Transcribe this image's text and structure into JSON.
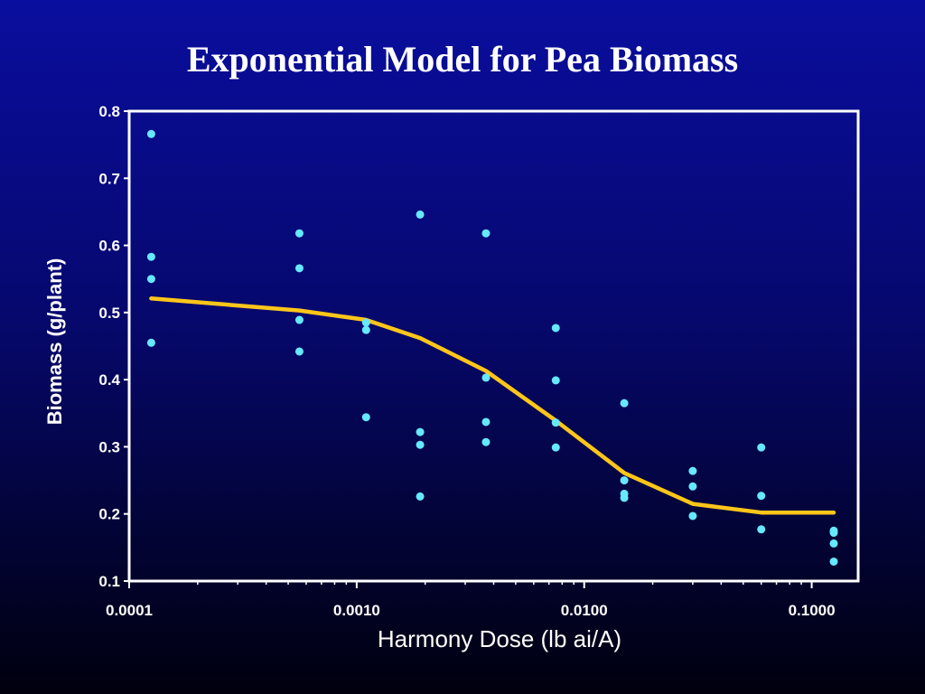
{
  "colors": {
    "background_top": "#0a0e9e",
    "background_bottom": "#00000e",
    "frame": "#ffffff",
    "points": "#66e8ff",
    "fit_line": "#ffc61a",
    "text": "#ffffff"
  },
  "chart_data": {
    "type": "scatter",
    "title": "Exponential Model for Pea Biomass",
    "xlabel": "Harmony Dose (lb ai/A)",
    "ylabel": "Biomass (g/plant)",
    "x_scale": "log",
    "xlim": [
      0.0001,
      0.16
    ],
    "ylim": [
      0.1,
      0.8
    ],
    "x_ticks": [
      {
        "value": 0.0001,
        "label": "0.0001"
      },
      {
        "value": 0.001,
        "label": "0.0010"
      },
      {
        "value": 0.01,
        "label": "0.0100"
      },
      {
        "value": 0.1,
        "label": "0.1000"
      }
    ],
    "y_ticks": [
      {
        "value": 0.1,
        "label": "0.1"
      },
      {
        "value": 0.2,
        "label": "0.2"
      },
      {
        "value": 0.3,
        "label": "0.3"
      },
      {
        "value": 0.4,
        "label": "0.4"
      },
      {
        "value": 0.5,
        "label": "0.5"
      },
      {
        "value": 0.6,
        "label": "0.6"
      },
      {
        "value": 0.7,
        "label": "0.7"
      },
      {
        "value": 0.8,
        "label": "0.8"
      }
    ],
    "grid": false,
    "series": [
      {
        "kind": "points",
        "points": [
          {
            "x": 0.000125,
            "y": 0.766
          },
          {
            "x": 0.000125,
            "y": 0.583
          },
          {
            "x": 0.000125,
            "y": 0.55
          },
          {
            "x": 0.000125,
            "y": 0.455
          },
          {
            "x": 0.00056,
            "y": 0.618
          },
          {
            "x": 0.00056,
            "y": 0.566
          },
          {
            "x": 0.00056,
            "y": 0.489
          },
          {
            "x": 0.00056,
            "y": 0.442
          },
          {
            "x": 0.0011,
            "y": 0.485
          },
          {
            "x": 0.0011,
            "y": 0.474
          },
          {
            "x": 0.0011,
            "y": 0.344
          },
          {
            "x": 0.0019,
            "y": 0.646
          },
          {
            "x": 0.0019,
            "y": 0.322
          },
          {
            "x": 0.0019,
            "y": 0.303
          },
          {
            "x": 0.0019,
            "y": 0.226
          },
          {
            "x": 0.0037,
            "y": 0.618
          },
          {
            "x": 0.0037,
            "y": 0.403
          },
          {
            "x": 0.0037,
            "y": 0.337
          },
          {
            "x": 0.0037,
            "y": 0.307
          },
          {
            "x": 0.0075,
            "y": 0.477
          },
          {
            "x": 0.0075,
            "y": 0.399
          },
          {
            "x": 0.0075,
            "y": 0.336
          },
          {
            "x": 0.0075,
            "y": 0.299
          },
          {
            "x": 0.015,
            "y": 0.365
          },
          {
            "x": 0.015,
            "y": 0.25
          },
          {
            "x": 0.015,
            "y": 0.23
          },
          {
            "x": 0.015,
            "y": 0.224
          },
          {
            "x": 0.03,
            "y": 0.264
          },
          {
            "x": 0.03,
            "y": 0.241
          },
          {
            "x": 0.03,
            "y": 0.197
          },
          {
            "x": 0.06,
            "y": 0.299
          },
          {
            "x": 0.06,
            "y": 0.227
          },
          {
            "x": 0.06,
            "y": 0.177
          },
          {
            "x": 0.125,
            "y": 0.175
          },
          {
            "x": 0.125,
            "y": 0.172
          },
          {
            "x": 0.125,
            "y": 0.156
          },
          {
            "x": 0.125,
            "y": 0.129
          }
        ]
      },
      {
        "kind": "line",
        "points": [
          {
            "x": 0.000125,
            "y": 0.521
          },
          {
            "x": 0.00056,
            "y": 0.503
          },
          {
            "x": 0.0011,
            "y": 0.489
          },
          {
            "x": 0.0019,
            "y": 0.462
          },
          {
            "x": 0.0037,
            "y": 0.413
          },
          {
            "x": 0.0075,
            "y": 0.339
          },
          {
            "x": 0.015,
            "y": 0.261
          },
          {
            "x": 0.03,
            "y": 0.215
          },
          {
            "x": 0.06,
            "y": 0.202
          },
          {
            "x": 0.125,
            "y": 0.202
          }
        ]
      }
    ]
  }
}
